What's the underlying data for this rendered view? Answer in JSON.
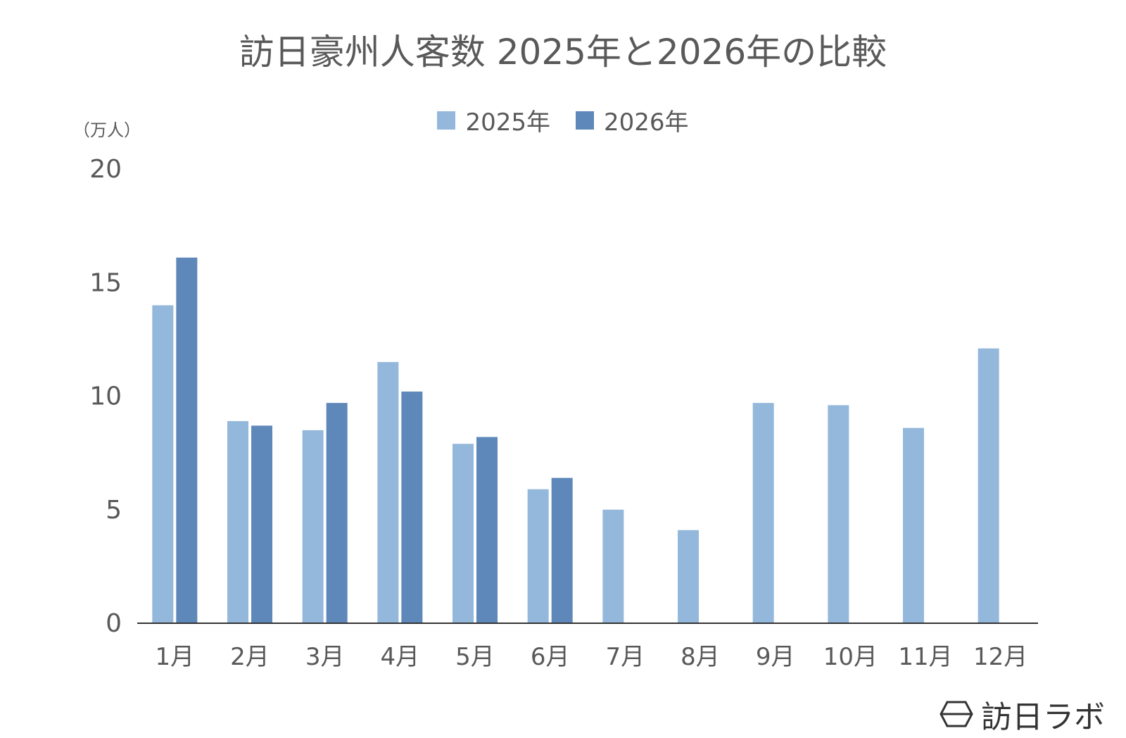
{
  "chart_data": {
    "type": "bar",
    "title": "訪日豪州人客数 2025年と2026年の比較",
    "y_unit_label": "（万人）",
    "categories": [
      "1月",
      "2月",
      "3月",
      "4月",
      "5月",
      "6月",
      "7月",
      "8月",
      "9月",
      "10月",
      "11月",
      "12月"
    ],
    "series": [
      {
        "name": "2025年",
        "color": "#94b8db",
        "values": [
          14.0,
          8.9,
          8.5,
          11.5,
          7.9,
          5.9,
          5.0,
          4.1,
          9.7,
          9.6,
          8.6,
          12.1
        ]
      },
      {
        "name": "2026年",
        "color": "#5f88ba",
        "values": [
          16.1,
          8.7,
          9.7,
          10.2,
          8.2,
          6.4,
          null,
          null,
          null,
          null,
          null,
          null
        ]
      }
    ],
    "y_ticks": [
      0,
      5,
      10,
      15,
      20
    ],
    "ylim": [
      0,
      20
    ],
    "grid": false,
    "legend_position": "top"
  },
  "watermark": {
    "icon": "hexagon-logo-icon",
    "text": "訪日ラボ"
  }
}
